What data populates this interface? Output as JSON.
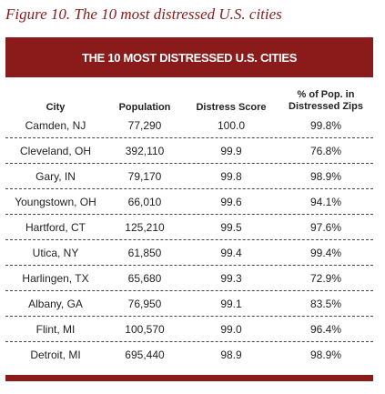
{
  "figure_title": "Figure 10. The 10 most distressed U.S. cities",
  "banner_title": "THE 10 MOST DISTRESSED U.S. CITIES",
  "columns": {
    "city": "City",
    "population": "Population",
    "distress_score": "Distress Score",
    "pct_line1": "% of Pop. in",
    "pct_line2": "Distressed Zips"
  },
  "rows": [
    {
      "city": "Camden, NJ",
      "population": "77,290",
      "score": "100.0",
      "pct": "99.8%"
    },
    {
      "city": "Cleveland, OH",
      "population": "392,110",
      "score": "99.9",
      "pct": "76.8%"
    },
    {
      "city": "Gary, IN",
      "population": "79,170",
      "score": "99.8",
      "pct": "98.9%"
    },
    {
      "city": "Youngstown, OH",
      "population": "66,010",
      "score": "99.6",
      "pct": "94.1%"
    },
    {
      "city": "Hartford, CT",
      "population": "125,210",
      "score": "99.5",
      "pct": "97.6%"
    },
    {
      "city": "Utica, NY",
      "population": "61,850",
      "score": "99.4",
      "pct": "99.4%"
    },
    {
      "city": "Harlingen, TX",
      "population": "65,680",
      "score": "99.3",
      "pct": "72.9%"
    },
    {
      "city": "Albany, GA",
      "population": "76,950",
      "score": "99.1",
      "pct": "83.5%"
    },
    {
      "city": "Flint, MI",
      "population": "100,570",
      "score": "99.0",
      "pct": "96.4%"
    },
    {
      "city": "Detroit, MI",
      "population": "695,440",
      "score": "98.9",
      "pct": "98.9%"
    }
  ],
  "colors": {
    "accent": "#8b1a1a",
    "text": "#222222",
    "background": "#ffffff"
  }
}
